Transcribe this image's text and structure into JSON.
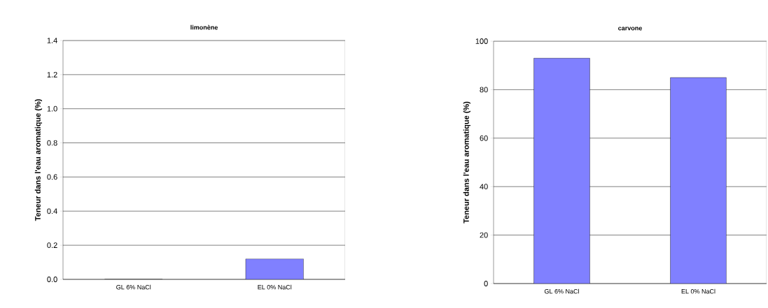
{
  "chart_data": [
    {
      "type": "bar",
      "title": "limonène",
      "ylabel": "Teneur dans l'eau aromatique (%)",
      "categories": [
        "GL 6% NaCl",
        "EL 0% NaCl"
      ],
      "values": [
        0,
        0.12
      ],
      "color": "#8080ff",
      "ylim": [
        0,
        1.4
      ],
      "yticks": [
        {
          "value": 0,
          "label": "0.0"
        },
        {
          "value": 0.2,
          "label": "0.2"
        },
        {
          "value": 0.4,
          "label": "0.4"
        },
        {
          "value": 0.6,
          "label": "0.6"
        },
        {
          "value": 0.8,
          "label": "0.8"
        },
        {
          "value": 1.0,
          "label": "1.0"
        },
        {
          "value": 1.2,
          "label": "1.2"
        },
        {
          "value": 1.4,
          "label": "1.4"
        }
      ],
      "grid": "y"
    },
    {
      "type": "bar",
      "title": "carvone",
      "ylabel": "Teneur dans l'eau aromatique (%)",
      "categories": [
        "GL 6% NaCl",
        "EL 0% NaCl"
      ],
      "values": [
        93,
        85
      ],
      "color": "#8080ff",
      "ylim": [
        0,
        100
      ],
      "yticks": [
        0,
        20,
        40,
        60,
        80,
        100
      ],
      "grid": "y"
    }
  ]
}
